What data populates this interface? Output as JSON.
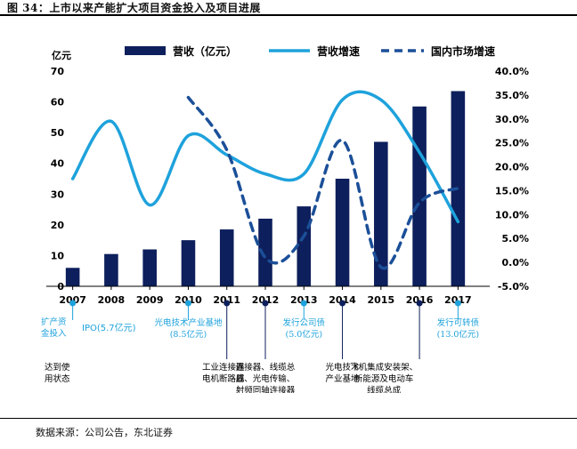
{
  "figure": {
    "caption": "图 34：上市以来产能扩大项目资金投入及项目进展",
    "source": "数据来源：公司公告，东北证券"
  },
  "chart_data": {
    "type": "bar",
    "categories": [
      "2007",
      "2008",
      "2009",
      "2010",
      "2011",
      "2012",
      "2013",
      "2014",
      "2015",
      "2016",
      "2017"
    ],
    "left_axis": {
      "label": "亿元",
      "ylim": [
        0,
        70
      ],
      "ticks": [
        "0",
        "10",
        "20",
        "30",
        "40",
        "50",
        "60",
        "70"
      ]
    },
    "right_axis": {
      "ylim": [
        -5,
        40
      ],
      "ticks": [
        "-5.0%",
        "0.0%",
        "5.0%",
        "10.0%",
        "15.0%",
        "20.0%",
        "25.0%",
        "30.0%",
        "35.0%",
        "40.0%"
      ]
    },
    "grid": false,
    "legend_position": "top",
    "series": [
      {
        "name": "营收（亿元）",
        "type": "bar",
        "axis": "left",
        "color": "#0d1f5c",
        "values": [
          6,
          10.5,
          12,
          15,
          18.5,
          22,
          26,
          35,
          47,
          58.5,
          63.5
        ]
      },
      {
        "name": "营收增速",
        "type": "line",
        "axis": "right",
        "color": "#1ea2dc",
        "style": "solid",
        "values": [
          17.5,
          29.5,
          12,
          26.5,
          22.5,
          18.5,
          18.5,
          34,
          34,
          23,
          8.5
        ]
      },
      {
        "name": "国内市场增速",
        "type": "line",
        "axis": "right",
        "color": "#1b4f98",
        "style": "dashed",
        "values": [
          null,
          null,
          null,
          34.5,
          23.5,
          1,
          5.5,
          25.5,
          -1,
          12.5,
          15.5
        ]
      }
    ]
  },
  "annotations": {
    "above": [
      {
        "year": "2007",
        "lines": [
          "扩产资",
          "金投入"
        ],
        "amount": "IPO(5.7亿元)",
        "color": "#1ea2dc"
      },
      {
        "year": "2010",
        "lines": [
          "光电技术产业基地",
          "(8.5亿元)"
        ],
        "color": "#1ea2dc"
      },
      {
        "year": "2013",
        "lines": [
          "发行公司债",
          "(5.0亿元)"
        ],
        "color": "#1ea2dc"
      },
      {
        "year": "2017",
        "lines": [
          "发行可转债",
          "(13.0亿元)"
        ],
        "color": "#1ea2dc"
      }
    ],
    "below_label": [
      "达到使",
      "用状态"
    ],
    "below": [
      {
        "year": "2011",
        "lines": [
          "工业连接器",
          "电机断路器"
        ]
      },
      {
        "year": "2012",
        "lines": [
          "连接器、线缆总",
          "成、光电传输、",
          "射频同轴连接器"
        ]
      },
      {
        "year": "2014",
        "lines": [
          "光电技术",
          "产业基地"
        ]
      },
      {
        "year": "2016",
        "lines": [
          "飞机集成安装架、",
          "新能源及电动车",
          "线缆总成"
        ]
      }
    ]
  }
}
